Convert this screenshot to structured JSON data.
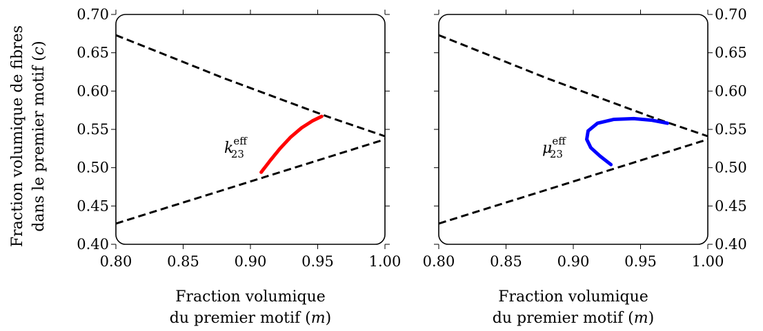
{
  "chart_data": [
    {
      "type": "line",
      "title": "",
      "xlabel_lines": [
        "Fraction volumique",
        "du premier motif (m)"
      ],
      "ylabel_lines": [
        "Fraction volumique de fibres",
        "dans le premier motif (c)"
      ],
      "xlim": [
        0.8,
        1.0
      ],
      "ylim": [
        0.4,
        0.7
      ],
      "xticks": [
        "0.80",
        "0.85",
        "0.90",
        "0.95",
        "1.00"
      ],
      "yticks": [
        "0.40",
        "0.45",
        "0.50",
        "0.55",
        "0.60",
        "0.65",
        "0.70"
      ],
      "yaxis_side": "left",
      "grid": false,
      "annotation": {
        "base": "k",
        "sup": "eff",
        "sub": "23"
      },
      "bounds": [
        {
          "style": "dashed",
          "color": "#000000",
          "x": [
            0.8,
            0.84,
            0.88,
            0.92,
            0.96,
            1.0
          ],
          "y": [
            0.673,
            0.645,
            0.617,
            0.591,
            0.565,
            0.541
          ]
        },
        {
          "style": "dashed",
          "color": "#000000",
          "x": [
            0.8,
            0.84,
            0.88,
            0.92,
            0.96,
            1.0
          ],
          "y": [
            0.427,
            0.449,
            0.471,
            0.493,
            0.515,
            0.537
          ]
        }
      ],
      "series": [
        {
          "color": "#ff0000",
          "x": [
            0.908,
            0.915,
            0.922,
            0.93,
            0.938,
            0.946,
            0.953
          ],
          "y": [
            0.494,
            0.51,
            0.525,
            0.54,
            0.552,
            0.561,
            0.567
          ]
        }
      ]
    },
    {
      "type": "line",
      "title": "",
      "xlabel_lines": [
        "Fraction volumique",
        "du premier motif (m)"
      ],
      "ylabel_lines": [],
      "xlim": [
        0.8,
        1.0
      ],
      "ylim": [
        0.4,
        0.7
      ],
      "xticks": [
        "0.80",
        "0.85",
        "0.90",
        "0.95",
        "1.00"
      ],
      "yticks": [
        "0.40",
        "0.45",
        "0.50",
        "0.55",
        "0.60",
        "0.65",
        "0.70"
      ],
      "yaxis_side": "right",
      "grid": false,
      "annotation": {
        "base": "μ",
        "sup": "eff",
        "sub": "23"
      },
      "bounds": [
        {
          "style": "dashed",
          "color": "#000000",
          "x": [
            0.8,
            0.84,
            0.88,
            0.92,
            0.96,
            1.0
          ],
          "y": [
            0.673,
            0.645,
            0.617,
            0.591,
            0.565,
            0.541
          ]
        },
        {
          "style": "dashed",
          "color": "#000000",
          "x": [
            0.8,
            0.84,
            0.88,
            0.92,
            0.96,
            1.0
          ],
          "y": [
            0.427,
            0.449,
            0.471,
            0.493,
            0.515,
            0.537
          ]
        }
      ],
      "series": [
        {
          "color": "#0000ff",
          "x": [
            0.928,
            0.92,
            0.913,
            0.91,
            0.911,
            0.918,
            0.93,
            0.945,
            0.958,
            0.97
          ],
          "y": [
            0.504,
            0.515,
            0.526,
            0.537,
            0.548,
            0.558,
            0.563,
            0.564,
            0.562,
            0.558
          ]
        }
      ]
    }
  ]
}
